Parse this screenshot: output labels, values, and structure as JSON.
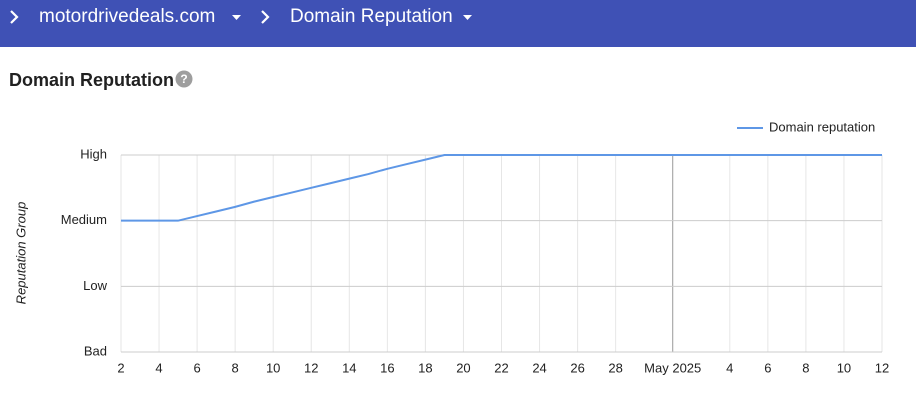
{
  "header": {
    "breadcrumbs": [
      "motordrivedeals.com",
      "Domain Reputation"
    ]
  },
  "page_title": "Domain Reputation",
  "chart_data": {
    "type": "line",
    "y_label": "Reputation Group",
    "categories": [
      "2",
      null,
      "4",
      null,
      "6",
      null,
      "8",
      null,
      "10",
      null,
      "12",
      null,
      "14",
      null,
      "16",
      null,
      "18",
      null,
      "20",
      null,
      "22",
      null,
      "24",
      null,
      "26",
      null,
      "28",
      null,
      null,
      "May 2025",
      null,
      null,
      "4",
      null,
      "6",
      null,
      "8",
      null,
      "10",
      null,
      "12"
    ],
    "series": [
      {
        "name": "Domain reputation",
        "color": "#5e97e6",
        "values": [
          2,
          2,
          2,
          2,
          2.07,
          2.14,
          2.21,
          2.29,
          2.36,
          2.43,
          2.5,
          2.57,
          2.64,
          2.71,
          2.79,
          2.86,
          2.93,
          3,
          3,
          3,
          3,
          3,
          3,
          3,
          3,
          3,
          3,
          3,
          3,
          3,
          3,
          3,
          3,
          3,
          3,
          3,
          3,
          3,
          3,
          3,
          3
        ]
      }
    ],
    "ylim": [
      0,
      3
    ],
    "yticks": [
      {
        "value": 0,
        "label": "Bad"
      },
      {
        "value": 1,
        "label": "Low"
      },
      {
        "value": 2,
        "label": "Medium"
      },
      {
        "value": 3,
        "label": "High"
      }
    ],
    "grid": true,
    "legend": "top-right"
  }
}
